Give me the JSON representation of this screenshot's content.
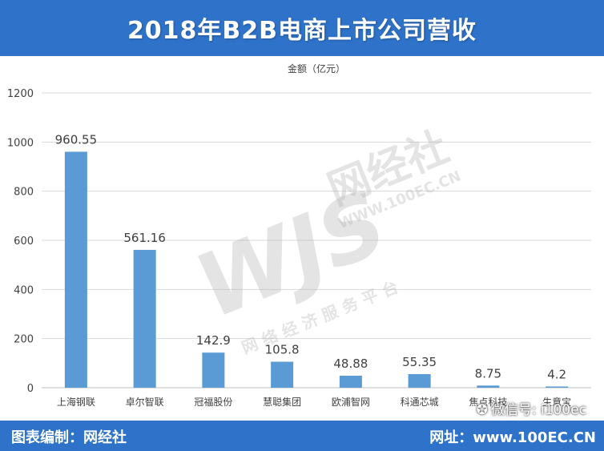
{
  "header": {
    "title": "2018年B2B电商上市公司营收"
  },
  "footer": {
    "left_label": "图表编制：网经社",
    "right_label": "网址：www.100EC.CN"
  },
  "watermark": {
    "logo_letters": "WJS",
    "logo_cn": "网经社",
    "logo_url": "WWW.100EC.CN",
    "logo_slogan": "网 络 经 济 服 务 平 台",
    "wechat_label": "微信号: i100ec"
  },
  "chart_data": {
    "type": "bar",
    "title": "金额（亿元）",
    "categories": [
      "上海钢联",
      "卓尔智联",
      "冠福股份",
      "慧聪集团",
      "欧浦智网",
      "科通芯城",
      "焦点科技",
      "生意宝"
    ],
    "values": [
      960.55,
      561.16,
      142.9,
      105.8,
      48.88,
      55.35,
      8.75,
      4.2
    ],
    "value_labels": [
      "960.55",
      "561.16",
      "142.9",
      "105.8",
      "48.88",
      "55.35",
      "8.75",
      "4.2"
    ],
    "ylim": [
      0,
      1200
    ],
    "yticks": [
      0,
      200,
      400,
      600,
      800,
      1000,
      1200
    ],
    "grid": true,
    "bar_color": "#5b9bd5",
    "grid_color": "#d9d9d9",
    "label_color": "#404040",
    "header_color": "#2e72c9"
  }
}
